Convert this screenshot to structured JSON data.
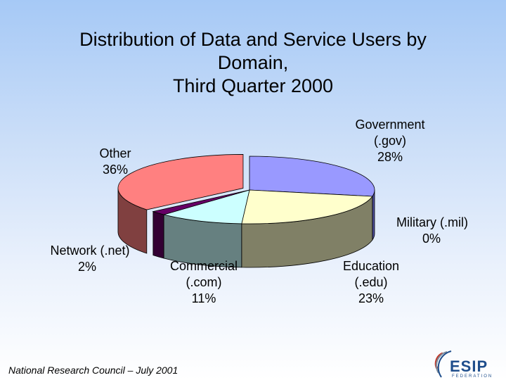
{
  "title_lines": [
    "Distribution of Data and Service Users by",
    "Domain,",
    "Third Quarter 2000"
  ],
  "chart_data": {
    "type": "pie",
    "title": "Distribution of Data and Service Users by Domain, Third Quarter 2000",
    "slices": [
      {
        "label_lines": [
          "Government",
          "(.gov)",
          "28%"
        ],
        "value": 28,
        "color": "#9999ff",
        "side_color": "#4d4d99"
      },
      {
        "label_lines": [
          "Military (.mil)",
          "0%"
        ],
        "value": 0,
        "color": "#993366",
        "side_color": "#4d1a33"
      },
      {
        "label_lines": [
          "Education",
          "(.edu)",
          "23%"
        ],
        "value": 23,
        "color": "#ffffcc",
        "side_color": "#808066"
      },
      {
        "label_lines": [
          "Commercial",
          "(.com)",
          "11%"
        ],
        "value": 11,
        "color": "#ccffff",
        "side_color": "#668080"
      },
      {
        "label_lines": [
          "Network (.net)",
          "2%"
        ],
        "value": 2,
        "color": "#660066",
        "side_color": "#330033"
      },
      {
        "label_lines": [
          "Other",
          "36%"
        ],
        "value": 36,
        "color": "#ff8080",
        "side_color": "#804040"
      }
    ],
    "legend": "none"
  },
  "footer": "National Research Council – July 2001",
  "logo_text": "ESIP",
  "logo_subtext": "FEDERATION"
}
